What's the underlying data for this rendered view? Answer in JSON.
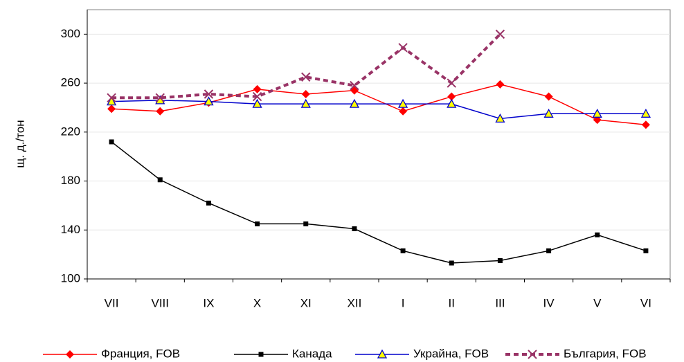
{
  "chart_data": {
    "type": "line",
    "y_label": "щ. д./тон",
    "categories": [
      "VII",
      "VIII",
      "IX",
      "X",
      "XI",
      "XII",
      "I",
      "II",
      "III",
      "IV",
      "V",
      "VI"
    ],
    "series": [
      {
        "name": "Франция, FOB",
        "color": "#ff0000",
        "marker": "diamond",
        "values": [
          239,
          237,
          244,
          255,
          251,
          254,
          237,
          249,
          259,
          249,
          230,
          226
        ]
      },
      {
        "name": "Канада",
        "color": "#000000",
        "marker": "square",
        "values": [
          212,
          181,
          162,
          145,
          145,
          141,
          123,
          113,
          115,
          123,
          136,
          123
        ]
      },
      {
        "name": "Украйна, FOB",
        "color": "#0000cc",
        "marker": "triangle",
        "values": [
          245,
          246,
          245,
          243,
          243,
          243,
          243,
          243,
          231,
          235,
          235,
          235
        ]
      },
      {
        "name": "България, FOB",
        "color": "#993366",
        "marker": "x",
        "dashed": true,
        "values": [
          248,
          248,
          251,
          249,
          265,
          258,
          289,
          260,
          300,
          null,
          null,
          null
        ]
      }
    ],
    "ylim": [
      100,
      320
    ],
    "yticks": [
      100,
      140,
      180,
      220,
      260,
      300
    ],
    "grid": true
  }
}
